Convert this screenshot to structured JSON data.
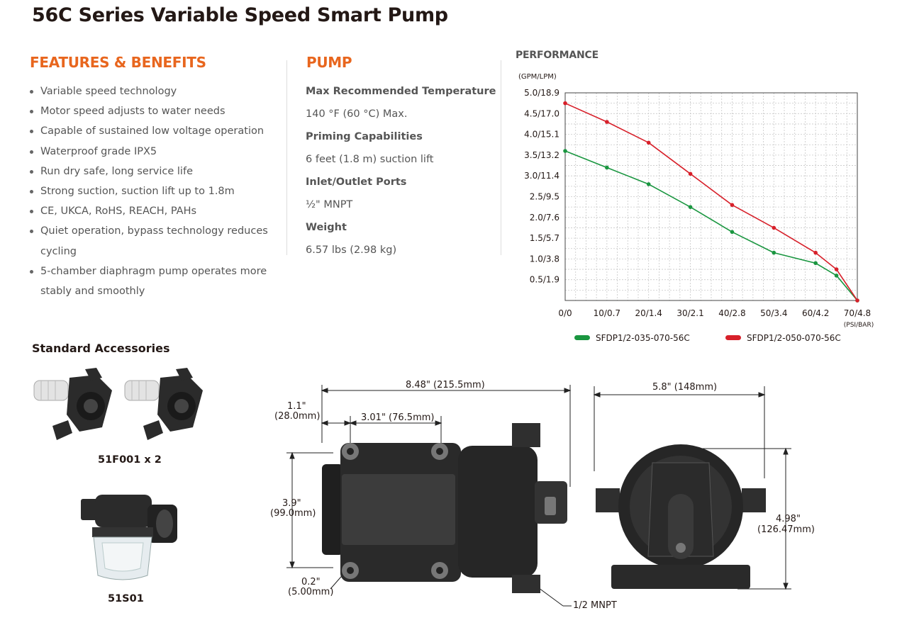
{
  "title": "56C Series Variable Speed Smart Pump",
  "features": {
    "heading": "FEATURES & BENEFITS",
    "items": [
      "Variable speed technology",
      "Motor speed adjusts to water needs",
      "Capable of sustained low voltage operation",
      "Waterproof grade IPX5",
      "Run dry safe, long service life",
      "Strong suction, suction lift up to 1.8m",
      "CE, UKCA, RoHS, REACH, PAHs",
      "Quiet operation, bypass technology reduces cycling",
      "5-chamber diaphragm pump operates more stably and smoothly"
    ]
  },
  "pump": {
    "heading": "PUMP",
    "specs": [
      {
        "label": "Max Recommended Temperature",
        "value": "140 °F (60 °C) Max."
      },
      {
        "label": "Priming Capabilities",
        "value": "6 feet (1.8 m) suction lift"
      },
      {
        "label": "Inlet/Outlet Ports",
        "value": "½\" MNPT"
      },
      {
        "label": "Weight",
        "value": "6.57 lbs (2.98 kg)"
      }
    ]
  },
  "performance": {
    "heading": "PERFORMANCE"
  },
  "chart_data": {
    "type": "line",
    "title": "",
    "ylabel": "(GPM/LPM)",
    "xlabel": "(PSI/BAR)",
    "x_ticks": [
      "0/0",
      "10/0.7",
      "20/1.4",
      "30/2.1",
      "40/2.8",
      "50/3.4",
      "60/4.2",
      "70/4.8"
    ],
    "y_ticks": [
      "0.5/1.9",
      "1.0/3.8",
      "1.5/5.7",
      "2.0/7.6",
      "2.5/9.5",
      "3.0/11.4",
      "3.5/13.2",
      "4.0/15.1",
      "4.5/17.0",
      "5.0/18.9"
    ],
    "xlim": [
      0,
      70
    ],
    "ylim": [
      0,
      5.0
    ],
    "grid": true,
    "legend_position": "bottom",
    "series": [
      {
        "name": "SFDP1/2-035-070-56C",
        "color": "#1a9640",
        "x": [
          0,
          10,
          20,
          30,
          40,
          50,
          60,
          65,
          70
        ],
        "y": [
          3.6,
          3.2,
          2.8,
          2.25,
          1.65,
          1.15,
          0.9,
          0.6,
          0.0
        ]
      },
      {
        "name": "SFDP1/2-050-070-56C",
        "color": "#d7202a",
        "x": [
          0,
          10,
          20,
          30,
          40,
          50,
          60,
          65,
          70
        ],
        "y": [
          4.75,
          4.3,
          3.8,
          3.05,
          2.3,
          1.75,
          1.15,
          0.75,
          0.0
        ]
      }
    ]
  },
  "accessories": {
    "heading": "Standard Accessories",
    "items": [
      {
        "caption": "51F001 x 2"
      },
      {
        "caption": "51S01"
      }
    ]
  },
  "dimensions": {
    "overall_length": "8.48\" (215.5mm)",
    "offset_a": "1.1\"",
    "offset_a_mm": "(28.0mm)",
    "hole_spacing": "3.01\" (76.5mm)",
    "height": "3.9\"",
    "height_mm": "(99.0mm)",
    "hole_dia": "0.2\"",
    "hole_dia_mm": "(5.00mm)",
    "port": "1/2 MNPT",
    "width": "5.8\" (148mm)",
    "front_height": "4.98\"",
    "front_height_mm": "(126.47mm)"
  }
}
